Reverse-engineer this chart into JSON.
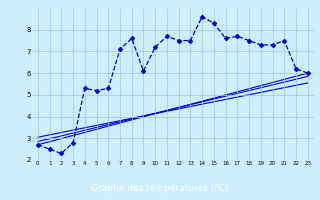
{
  "xlabel": "Graphe des températures (°C)",
  "main_x": [
    0,
    1,
    2,
    3,
    4,
    5,
    6,
    7,
    8,
    9,
    10,
    11,
    12,
    13,
    14,
    15,
    16,
    17,
    18,
    19,
    20,
    21,
    22,
    23
  ],
  "main_y": [
    2.7,
    2.5,
    2.3,
    2.8,
    5.3,
    5.2,
    5.3,
    7.1,
    7.6,
    6.1,
    7.2,
    7.7,
    7.5,
    7.5,
    8.6,
    8.3,
    7.6,
    7.7,
    7.5,
    7.3,
    7.3,
    7.5,
    6.2,
    6.0
  ],
  "line1_x": [
    0,
    23
  ],
  "line1_y": [
    2.7,
    6.0
  ],
  "line2_x": [
    0,
    23
  ],
  "line2_y": [
    2.85,
    5.85
  ],
  "line3_x": [
    0,
    23
  ],
  "line3_y": [
    3.05,
    5.55
  ],
  "line_color": "#0000cc",
  "bg_color": "#cceeff",
  "grid_color": "#99cccc",
  "bar_color": "#0000aa",
  "xlim": [
    -0.5,
    23.5
  ],
  "ylim": [
    2.0,
    9.0
  ],
  "yticks": [
    2,
    3,
    4,
    5,
    6,
    7,
    8
  ],
  "xticks": [
    0,
    1,
    2,
    3,
    4,
    5,
    6,
    7,
    8,
    9,
    10,
    11,
    12,
    13,
    14,
    15,
    16,
    17,
    18,
    19,
    20,
    21,
    22,
    23
  ]
}
